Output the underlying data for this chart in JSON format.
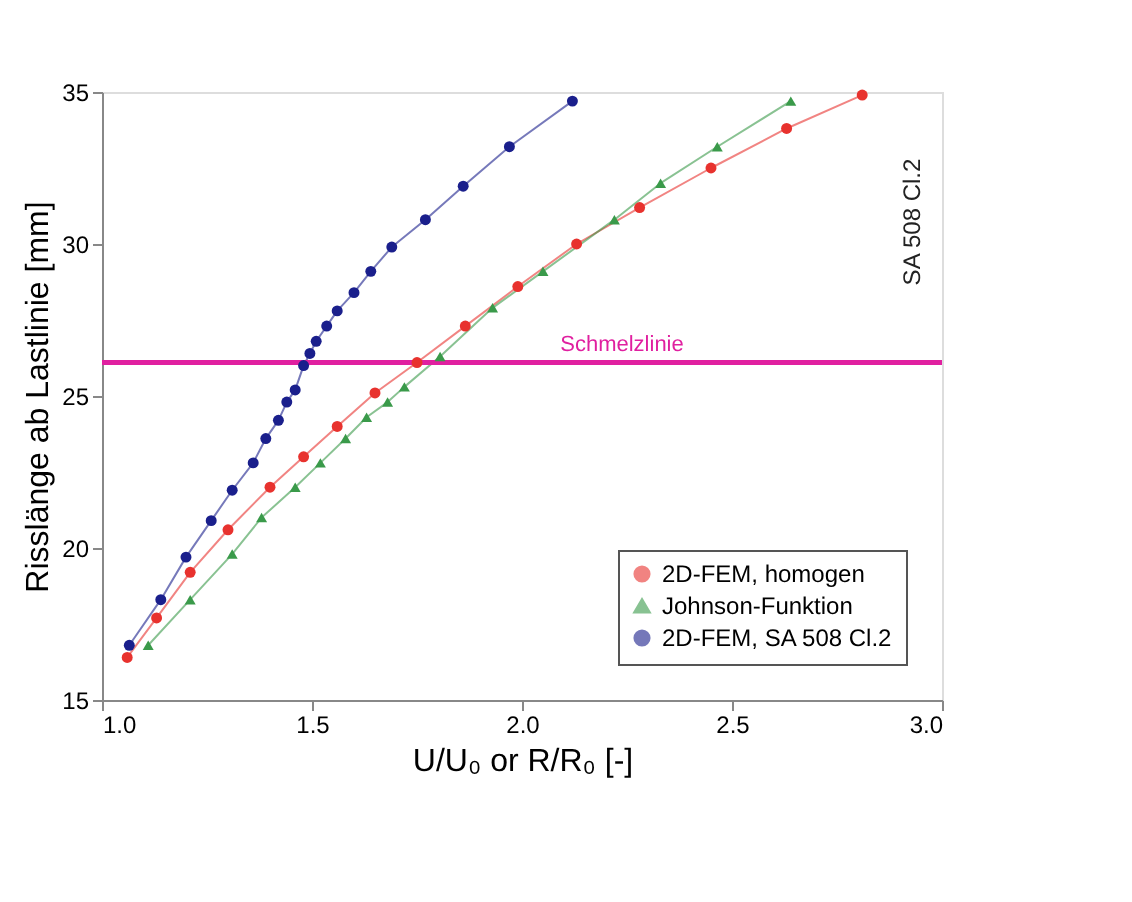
{
  "chart_data": {
    "type": "line",
    "xlabel": "U/U₀  or  R/R₀   [-]",
    "ylabel": "Risslänge ab Lastlinie   [mm]",
    "xlim": [
      1.0,
      3.0
    ],
    "xticks": [
      {
        "value": 1.0,
        "label": "1.0"
      },
      {
        "value": 1.5,
        "label": "1.5"
      },
      {
        "value": 2.0,
        "label": "2.0"
      },
      {
        "value": 2.5,
        "label": "2.5"
      },
      {
        "value": 3.0,
        "label": "3.0"
      }
    ],
    "ylim": [
      15,
      35
    ],
    "yticks": [
      15,
      20,
      25,
      30,
      35
    ],
    "grid": false,
    "legend": "bottom right",
    "line_style": "solid",
    "series": [
      {
        "name": "2D-FEM, homogen",
        "color": "#e8322e",
        "marker": "circle",
        "x": [
          1.06,
          1.13,
          1.21,
          1.3,
          1.4,
          1.48,
          1.56,
          1.65,
          1.75,
          1.865,
          1.99,
          2.13,
          2.28,
          2.45,
          2.63,
          2.81
        ],
        "values": [
          16.4,
          17.7,
          19.2,
          20.6,
          22.0,
          23.0,
          24.0,
          25.1,
          26.1,
          27.3,
          28.6,
          30.0,
          31.2,
          32.5,
          33.8,
          34.9
        ]
      },
      {
        "name": "Johnson-Funktion",
        "color": "#3a9a4a",
        "marker": "triangle",
        "x": [
          1.11,
          1.21,
          1.31,
          1.38,
          1.46,
          1.52,
          1.58,
          1.63,
          1.68,
          1.72,
          1.805,
          1.93,
          2.05,
          2.22,
          2.33,
          2.465,
          2.64
        ],
        "values": [
          16.8,
          18.3,
          19.8,
          21.0,
          22.0,
          22.8,
          23.6,
          24.3,
          24.8,
          25.3,
          26.3,
          27.9,
          29.1,
          30.8,
          32.0,
          33.2,
          34.7
        ]
      },
      {
        "name": "2D-FEM, SA 508 Cl.2",
        "color": "#1a1f8c",
        "marker": "circle",
        "x": [
          1.065,
          1.14,
          1.2,
          1.26,
          1.31,
          1.36,
          1.39,
          1.42,
          1.44,
          1.46,
          1.48,
          1.495,
          1.51,
          1.535,
          1.56,
          1.6,
          1.64,
          1.69,
          1.77,
          1.86,
          1.97,
          2.12
        ],
        "values": [
          16.8,
          18.3,
          19.7,
          20.9,
          21.9,
          22.8,
          23.6,
          24.2,
          24.8,
          25.2,
          26.0,
          26.4,
          26.8,
          27.3,
          27.8,
          28.4,
          29.1,
          29.9,
          30.8,
          31.9,
          33.2,
          34.7
        ]
      }
    ],
    "ref_lines": [
      {
        "axis": "y",
        "value": 26.1,
        "label": "Schmelzlinie",
        "color": "#e020a0"
      }
    ],
    "annotations": [
      "SA 508 Cl.2"
    ]
  }
}
